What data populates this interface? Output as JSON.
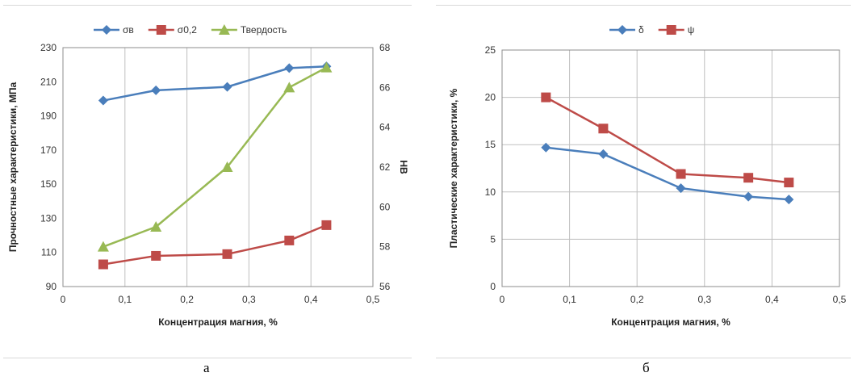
{
  "captions": {
    "a": "а",
    "b": "б"
  },
  "chart_data": [
    {
      "type": "line",
      "xlabel": "Концентрация магния, %",
      "ylabel": "Прочностные характеристики, МПа",
      "y2label": "HB",
      "xlim": [
        0,
        0.5
      ],
      "ylim": [
        90,
        230
      ],
      "y2lim": [
        56,
        68
      ],
      "xticks": [
        "0",
        "0,1",
        "0,2",
        "0,3",
        "0,4",
        "0,5"
      ],
      "yticks": [
        "90",
        "110",
        "130",
        "150",
        "170",
        "190",
        "210",
        "230"
      ],
      "y2ticks": [
        "56",
        "58",
        "60",
        "62",
        "64",
        "66",
        "68"
      ],
      "grid": "vertical",
      "legend_position": "top",
      "series": [
        {
          "name": "σв",
          "axis": "left",
          "color": "#4a7ebb",
          "marker": "diamond",
          "x": [
            0.065,
            0.15,
            0.265,
            0.365,
            0.425
          ],
          "y": [
            199,
            205,
            207,
            218,
            219
          ]
        },
        {
          "name": "σ0,2",
          "axis": "left",
          "color": "#be4b48",
          "marker": "square",
          "x": [
            0.065,
            0.15,
            0.265,
            0.365,
            0.425
          ],
          "y": [
            103,
            108,
            109,
            117,
            126
          ]
        },
        {
          "name": "Твердость",
          "axis": "right",
          "color": "#98b954",
          "marker": "triangle",
          "x": [
            0.065,
            0.15,
            0.265,
            0.365,
            0.425
          ],
          "y": [
            58,
            59,
            62,
            66,
            67
          ]
        }
      ]
    },
    {
      "type": "line",
      "xlabel": "Концентрация магния, %",
      "ylabel": "Пластические характеристики, %",
      "xlim": [
        0,
        0.5
      ],
      "ylim": [
        0,
        25
      ],
      "xticks": [
        "0",
        "0,1",
        "0,2",
        "0,3",
        "0,4",
        "0,5"
      ],
      "yticks": [
        "0",
        "5",
        "10",
        "15",
        "20",
        "25"
      ],
      "grid": "both",
      "legend_position": "top",
      "series": [
        {
          "name": "δ",
          "color": "#4a7ebb",
          "marker": "diamond",
          "x": [
            0.065,
            0.15,
            0.265,
            0.365,
            0.425
          ],
          "y": [
            14.7,
            14.0,
            10.4,
            9.5,
            9.2
          ]
        },
        {
          "name": "ψ",
          "color": "#be4b48",
          "marker": "square",
          "x": [
            0.065,
            0.15,
            0.265,
            0.365,
            0.425
          ],
          "y": [
            20.0,
            16.7,
            11.9,
            11.5,
            11.0
          ]
        }
      ]
    }
  ]
}
